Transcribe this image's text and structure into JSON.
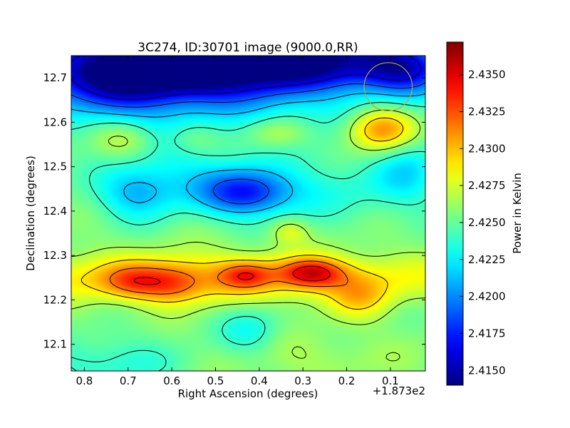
{
  "chart_data": {
    "type": "heatmap",
    "title": "3C274, ID:30701 image (9000.0,RR)",
    "xlabel": "Right Ascension (degrees)",
    "ylabel": "Declination (degrees)",
    "x_offset_label": "+1.873e2",
    "xlim": [
      0.83,
      0.02
    ],
    "ylim": [
      12.04,
      12.75
    ],
    "x_ticks": [
      0.8,
      0.7,
      0.6,
      0.5,
      0.4,
      0.3,
      0.2,
      0.1
    ],
    "x_tick_labels": [
      "0.8",
      "0.7",
      "0.6",
      "0.5",
      "0.4",
      "0.3",
      "0.2",
      "0.1"
    ],
    "y_ticks": [
      12.1,
      12.2,
      12.3,
      12.4,
      12.5,
      12.6,
      12.7
    ],
    "y_tick_labels": [
      "12.1",
      "12.2",
      "12.3",
      "12.4",
      "12.5",
      "12.6",
      "12.7"
    ],
    "colormap": "jet",
    "colorbar": {
      "label": "Power in Kelvin",
      "range": [
        2.414,
        2.4372
      ],
      "ticks": [
        2.415,
        2.4175,
        2.42,
        2.4225,
        2.425,
        2.4275,
        2.43,
        2.4325,
        2.435
      ],
      "tick_labels": [
        "2.4150",
        "2.4175",
        "2.4200",
        "2.4225",
        "2.4250",
        "2.4275",
        "2.4300",
        "2.4325",
        "2.4350"
      ]
    },
    "beam_marker": {
      "ra": 0.105,
      "dec": 12.68,
      "radius_deg": 0.055,
      "color": "#b5a642"
    },
    "field": {
      "baseline": 2.4255,
      "features": [
        {
          "ra": 0.65,
          "dec": 12.72,
          "sx": 0.22,
          "sy": 0.05,
          "amp": -0.0095
        },
        {
          "ra": 0.58,
          "dec": 12.745,
          "sx": 0.07,
          "sy": 0.03,
          "amp": -0.006
        },
        {
          "ra": 0.3,
          "dec": 12.74,
          "sx": 0.18,
          "sy": 0.04,
          "amp": -0.0075
        },
        {
          "ra": 0.07,
          "dec": 12.72,
          "sx": 0.07,
          "sy": 0.04,
          "amp": -0.006
        },
        {
          "ra": 0.45,
          "dec": 12.7,
          "sx": 0.3,
          "sy": 0.09,
          "amp": -0.004
        },
        {
          "ra": 0.72,
          "dec": 12.68,
          "sx": 0.1,
          "sy": 0.06,
          "amp": -0.003
        },
        {
          "ra": 0.43,
          "dec": 12.44,
          "sx": 0.07,
          "sy": 0.035,
          "amp": -0.0065
        },
        {
          "ra": 0.68,
          "dec": 12.44,
          "sx": 0.06,
          "sy": 0.04,
          "amp": -0.0035
        },
        {
          "ra": 0.3,
          "dec": 12.45,
          "sx": 0.25,
          "sy": 0.05,
          "amp": -0.002
        },
        {
          "ra": 0.06,
          "dec": 12.5,
          "sx": 0.05,
          "sy": 0.05,
          "amp": -0.0025
        },
        {
          "ra": 0.58,
          "dec": 12.49,
          "sx": 0.1,
          "sy": 0.05,
          "amp": -0.0015
        },
        {
          "ra": 0.71,
          "dec": 12.56,
          "sx": 0.05,
          "sy": 0.03,
          "amp": 0.0025
        },
        {
          "ra": 0.12,
          "dec": 12.585,
          "sx": 0.055,
          "sy": 0.035,
          "amp": 0.0065
        },
        {
          "ra": 0.36,
          "dec": 12.575,
          "sx": 0.05,
          "sy": 0.025,
          "amp": 0.0025
        },
        {
          "ra": 0.55,
          "dec": 12.565,
          "sx": 0.04,
          "sy": 0.025,
          "amp": 0.0015
        },
        {
          "ra": 0.5,
          "dec": 12.25,
          "sx": 0.4,
          "sy": 0.04,
          "amp": 0.0045
        },
        {
          "ra": 0.69,
          "dec": 12.24,
          "sx": 0.05,
          "sy": 0.025,
          "amp": 0.0035
        },
        {
          "ra": 0.6,
          "dec": 12.235,
          "sx": 0.05,
          "sy": 0.03,
          "amp": 0.0035
        },
        {
          "ra": 0.28,
          "dec": 12.26,
          "sx": 0.05,
          "sy": 0.022,
          "amp": 0.0065
        },
        {
          "ra": 0.43,
          "dec": 12.255,
          "sx": 0.04,
          "sy": 0.02,
          "amp": 0.004
        },
        {
          "ra": 0.17,
          "dec": 12.205,
          "sx": 0.05,
          "sy": 0.035,
          "amp": 0.003
        },
        {
          "ra": 0.33,
          "dec": 12.355,
          "sx": 0.03,
          "sy": 0.02,
          "amp": 0.0025
        },
        {
          "ra": 0.42,
          "dec": 12.13,
          "sx": 0.05,
          "sy": 0.04,
          "amp": -0.0025
        },
        {
          "ra": 0.75,
          "dec": 12.06,
          "sx": 0.12,
          "sy": 0.04,
          "amp": -0.002
        },
        {
          "ra": 0.28,
          "dec": 12.07,
          "sx": 0.15,
          "sy": 0.04,
          "amp": 0.001
        }
      ]
    }
  }
}
